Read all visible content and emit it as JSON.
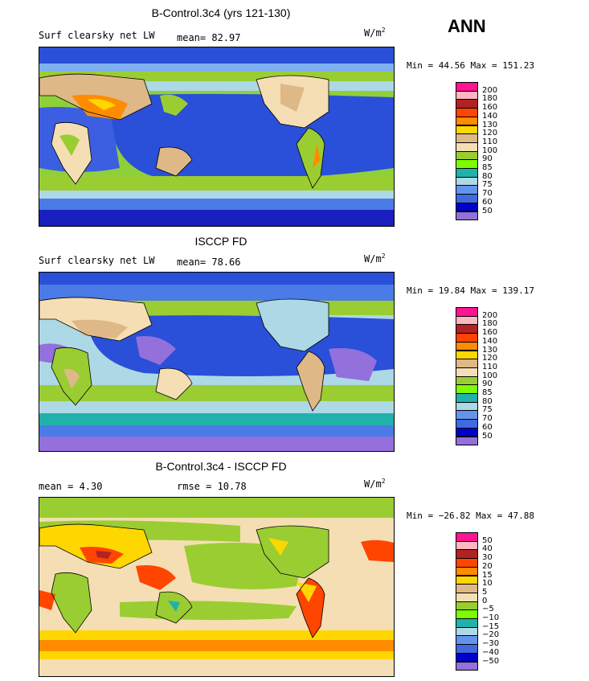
{
  "season": "ANN",
  "panels": [
    {
      "title": "B-Control.3c4 (yrs 121-130)",
      "left_text": "Surf clearsky net LW",
      "center_text": "mean=  82.97",
      "units_base": "W/m",
      "units_exp": "2",
      "minmax": "Min =  44.56 Max = 151.23",
      "scheme": "abs",
      "levels": [
        "200",
        "180",
        "160",
        "140",
        "130",
        "120",
        "110",
        "100",
        "90",
        "85",
        "80",
        "75",
        "70",
        "60",
        "50"
      ]
    },
    {
      "title": "ISCCP FD",
      "left_text": "Surf clearsky net LW",
      "center_text": "mean=  78.66",
      "units_base": "W/m",
      "units_exp": "2",
      "minmax": "Min =  19.84 Max = 139.17",
      "scheme": "obs",
      "levels": [
        "200",
        "180",
        "160",
        "140",
        "130",
        "120",
        "110",
        "100",
        "90",
        "85",
        "80",
        "75",
        "70",
        "60",
        "50"
      ]
    },
    {
      "title": "B-Control.3c4 - ISCCP FD",
      "left_text": "mean =   4.30",
      "center_text": "rmse =  10.78",
      "units_base": "W/m",
      "units_exp": "2",
      "minmax": "Min = −26.82 Max =  47.88",
      "scheme": "diff",
      "levels": [
        "50",
        "40",
        "30",
        "20",
        "15",
        "10",
        "5",
        "0",
        "−5",
        "−10",
        "−15",
        "−20",
        "−30",
        "−40",
        "−50"
      ]
    }
  ],
  "colors": {
    "swatches": [
      "#ff1493",
      "#ffb6c1",
      "#b22222",
      "#ff4500",
      "#ff8c00",
      "#ffd700",
      "#deb887",
      "#f5deb3",
      "#9acd32",
      "#7cfc00",
      "#20b2aa",
      "#add8e6",
      "#6495ed",
      "#4169e1",
      "#0000cd",
      "#9370db"
    ],
    "ocean_deep": "#1f3ccf",
    "ocean_mid": "#4a7be6",
    "land": "#deb887",
    "coast": "#000000"
  }
}
